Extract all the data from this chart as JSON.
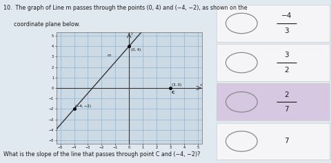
{
  "title_line1": "10.  The graph of Line m passes through the points (0, 4) and (−4, −2), as shown on the",
  "title_line2": "      coordinate plane below.",
  "question_text": "What is the slope of the line that passes through point C and (−4, −2)?",
  "line_points": [
    [
      -4,
      -2
    ],
    [
      0,
      4
    ]
  ],
  "label_m": "m",
  "label_04": "(0, 4)",
  "label_30": "(3, 0)",
  "label_n42": "(−4, −2)",
  "label_C": "C",
  "point_C": [
    3,
    0
  ],
  "grid_color": "#9ab8d0",
  "line_color": "#333333",
  "plot_bg": "#ccdae6",
  "axis_range": [
    -5,
    5
  ],
  "choices": [
    {
      "num": "4",
      "den": "3",
      "neg": true,
      "selected": false
    },
    {
      "num": "3",
      "den": "2",
      "neg": false,
      "selected": false
    },
    {
      "num": "2",
      "den": "7",
      "neg": false,
      "selected": true
    },
    {
      "num": "7",
      "den": "",
      "neg": false,
      "selected": false
    }
  ],
  "choice_box_selected": "#d5c8e0",
  "choice_box_normal": "#f5f5f8",
  "choice_box_border": "#cccccc",
  "text_color": "#1a1a1a",
  "bg_page": "#e0e8f0",
  "fig_w": 4.8,
  "fig_h": 2.37,
  "dpi": 100
}
